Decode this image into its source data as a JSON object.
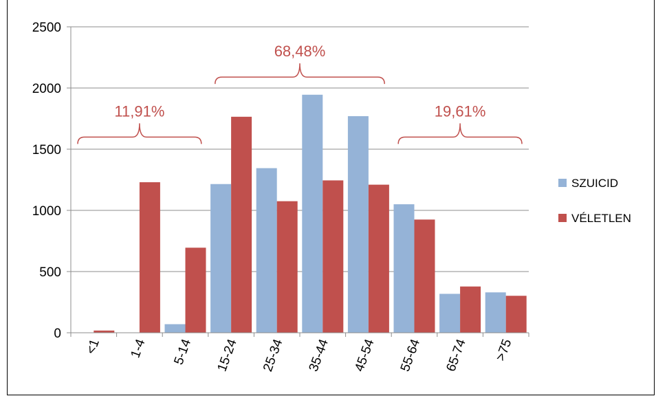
{
  "chart_data": {
    "type": "bar",
    "categories": [
      "<1",
      "1-4",
      "5-14",
      "15-24",
      "25-34",
      "35-44",
      "45-54",
      "55-64",
      "65-74",
      ">75"
    ],
    "series": [
      {
        "name": "SZUICID",
        "color": "#95B3D7",
        "values": [
          0,
          0,
          70,
          1215,
          1345,
          1945,
          1770,
          1050,
          318,
          330
        ]
      },
      {
        "name": "VÉLETLEN",
        "color": "#C0504D",
        "values": [
          18,
          1230,
          695,
          1765,
          1075,
          1245,
          1210,
          925,
          378,
          302
        ]
      }
    ],
    "ylim": [
      0,
      2500
    ],
    "yticks": [
      0,
      500,
      1000,
      1500,
      2000,
      2500
    ],
    "grid": true,
    "legend_position": "right",
    "annotation_color": "#C0504D",
    "annotations": [
      {
        "label": "11,91%",
        "from_category": "<1",
        "to_category": "5-14",
        "level": 1515
      },
      {
        "label": "68,48%",
        "from_category": "15-24",
        "to_category": "45-54",
        "level": 2005
      },
      {
        "label": "19,61%",
        "from_category": "55-64",
        "to_category": ">75",
        "level": 1515
      }
    ]
  }
}
